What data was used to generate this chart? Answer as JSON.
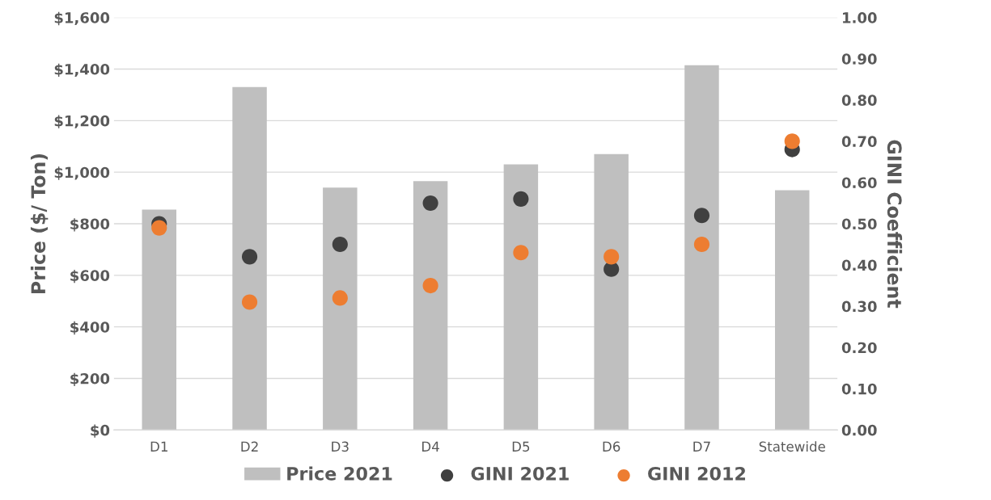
{
  "chart_data": {
    "type": "bar",
    "ylabel": "Price ($/ Ton)",
    "y2label": "GINI Coefficient",
    "categories": [
      "D1",
      "D2",
      "D3",
      "D4",
      "D5",
      "D6",
      "D7",
      "Statewide"
    ],
    "series": [
      {
        "name": "Price 2021",
        "color": "#bfbfbf",
        "values": [
          855,
          1330,
          940,
          965,
          1030,
          1070,
          1415,
          930
        ]
      },
      {
        "name": "GINI 2021",
        "type": "scatter",
        "axis": "y2",
        "color": "#404040",
        "marker": "circle",
        "values": [
          0.5,
          0.42,
          0.45,
          0.55,
          0.56,
          0.39,
          0.52,
          0.68
        ]
      },
      {
        "name": "GINI 2012",
        "type": "scatter",
        "axis": "y2",
        "color": "#ed7d31",
        "marker": "circle",
        "values": [
          0.49,
          0.31,
          0.32,
          0.35,
          0.43,
          0.42,
          0.45,
          0.7
        ]
      }
    ],
    "ylim": [
      0,
      1600
    ],
    "yticks": [
      {
        "value": 0,
        "label": "$0"
      },
      {
        "value": 200,
        "label": "$200"
      },
      {
        "value": 400,
        "label": "$400"
      },
      {
        "value": 600,
        "label": "$600"
      },
      {
        "value": 800,
        "label": "$800"
      },
      {
        "value": 1000,
        "label": "$1,000"
      },
      {
        "value": 1200,
        "label": "$1,200"
      },
      {
        "value": 1400,
        "label": "$1,400"
      },
      {
        "value": 1600,
        "label": "$1,600"
      }
    ],
    "y2lim": [
      0,
      1
    ],
    "y2ticks": [
      {
        "value": 0,
        "label": "0.00"
      },
      {
        "value": 0.1,
        "label": "0.10"
      },
      {
        "value": 0.2,
        "label": "0.20"
      },
      {
        "value": 0.3,
        "label": "0.30"
      },
      {
        "value": 0.4,
        "label": "0.40"
      },
      {
        "value": 0.5,
        "label": "0.50"
      },
      {
        "value": 0.6,
        "label": "0.60"
      },
      {
        "value": 0.7,
        "label": "0.70"
      },
      {
        "value": 0.8,
        "label": "0.80"
      },
      {
        "value": 0.9,
        "label": "0.90"
      },
      {
        "value": 1,
        "label": "1.00"
      }
    ],
    "grid": "y",
    "legend": "bottom"
  }
}
